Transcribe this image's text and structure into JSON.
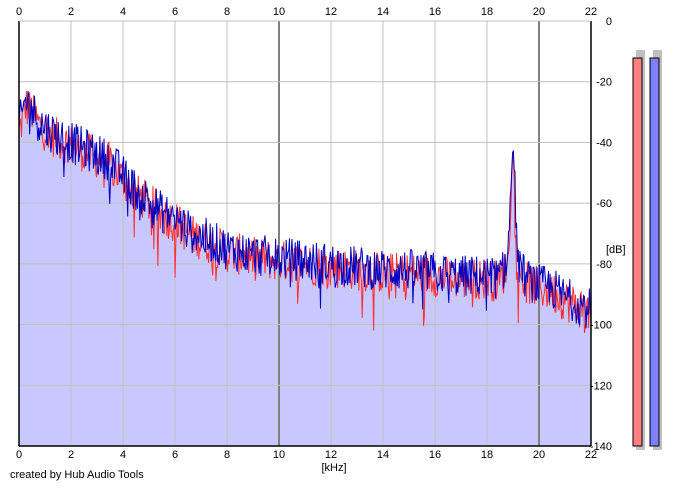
{
  "chart_data": {
    "type": "area",
    "xlabel": "[kHz]",
    "ylabel": "[dB]",
    "xlim": [
      0,
      22
    ],
    "ylim": [
      -140,
      0
    ],
    "x_ticks": [
      "0",
      "2",
      "4",
      "6",
      "8",
      "10",
      "12",
      "14",
      "16",
      "18",
      "20",
      "22"
    ],
    "y_ticks": [
      "0",
      "-20",
      "-40",
      "-60",
      "-80",
      "-100",
      "-120",
      "-140"
    ],
    "grid": true,
    "series": [
      {
        "channel": "left",
        "color": "#ff3030",
        "x": [
          0,
          0.25,
          0.5,
          0.75,
          1,
          1.5,
          2,
          2.5,
          3,
          3.5,
          4,
          4.5,
          5,
          5.5,
          6,
          6.5,
          7,
          7.5,
          8,
          9,
          10,
          11,
          12,
          13,
          14,
          15,
          16,
          17,
          18,
          18.5,
          18.8,
          19.0,
          19.2,
          19.5,
          20,
          20.5,
          21,
          21.5,
          22
        ],
        "y": [
          -37,
          -28,
          -30,
          -34,
          -36,
          -39,
          -41,
          -43,
          -45,
          -47,
          -52,
          -57,
          -60,
          -64,
          -66,
          -70,
          -72,
          -74,
          -76,
          -78,
          -79,
          -80,
          -81,
          -82,
          -83,
          -83,
          -84,
          -85,
          -85,
          -86,
          -80,
          -42,
          -82,
          -86,
          -88,
          -89,
          -92,
          -94,
          -96
        ]
      },
      {
        "channel": "right",
        "color": "#0000c0",
        "x": [
          0,
          0.25,
          0.5,
          0.75,
          1,
          1.5,
          2,
          2.5,
          3,
          3.5,
          4,
          4.5,
          5,
          5.5,
          6,
          6.5,
          7,
          7.5,
          8,
          9,
          10,
          11,
          12,
          13,
          14,
          15,
          16,
          17,
          18,
          18.5,
          18.8,
          19.0,
          19.2,
          19.5,
          20,
          20.5,
          21,
          21.5,
          22
        ],
        "y": [
          -35,
          -26,
          -29,
          -33,
          -35,
          -38,
          -40,
          -42,
          -44,
          -46,
          -51,
          -56,
          -59,
          -63,
          -65,
          -69,
          -71,
          -73,
          -75,
          -77,
          -78,
          -79,
          -80,
          -81,
          -82,
          -82,
          -83,
          -84,
          -84,
          -85,
          -78,
          -40,
          -80,
          -85,
          -87,
          -88,
          -91,
          -93,
          -95
        ]
      }
    ],
    "level_meters": [
      {
        "channel": "left",
        "color": "#ff8080",
        "level": 0.97
      },
      {
        "channel": "right",
        "color": "#8080ff",
        "level": 0.97
      }
    ]
  },
  "footer": {
    "credit": "created by Hub Audio Tools"
  },
  "colors": {
    "plot_bg": "#ffffff",
    "fill": "#c8c8ff",
    "grid": "#c0c0c0",
    "major_grid": "#808080",
    "axis": "#000000"
  }
}
